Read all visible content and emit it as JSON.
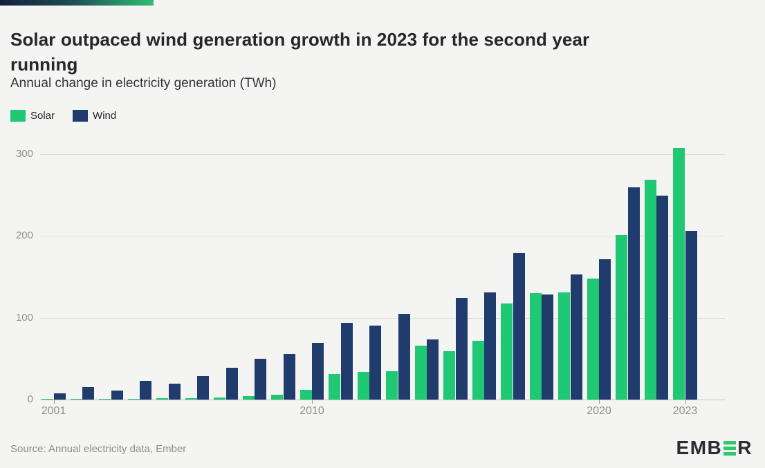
{
  "header": {
    "title_line1": "Solar outpaced wind generation growth in 2023 for the second year",
    "title_line2": "running",
    "subtitle": "Annual change in electricity generation (TWh)"
  },
  "legend": [
    {
      "label": "Solar",
      "color": "#1fc873"
    },
    {
      "label": "Wind",
      "color": "#1f3c6d"
    }
  ],
  "footer": {
    "source": "Source: Annual electricity data, Ember",
    "logo_pre": "EMB",
    "logo_post": "R",
    "logo_accent_color": "#2ec96e"
  },
  "colors": {
    "background": "#f4f4f2",
    "solar": "#1fc873",
    "wind": "#1f3c6d",
    "gridline": "#dcdcda",
    "axis_text": "#8f8f8f",
    "title_text": "#26262b"
  },
  "chart_data": {
    "type": "bar",
    "title": "Solar outpaced wind generation growth in 2023 for the second year running",
    "subtitle": "Annual change in electricity generation (TWh)",
    "xlabel": "",
    "ylabel": "Annual change in electricity generation (TWh)",
    "ylim": [
      0,
      320
    ],
    "grid": true,
    "legend_position": "top-left",
    "y_ticks": [
      0,
      100,
      200,
      300
    ],
    "x_tick_labels": [
      "2001",
      "2010",
      "2020",
      "2023"
    ],
    "categories": [
      2001,
      2002,
      2003,
      2004,
      2005,
      2006,
      2007,
      2008,
      2009,
      2010,
      2011,
      2012,
      2013,
      2014,
      2015,
      2016,
      2017,
      2018,
      2019,
      2020,
      2021,
      2022,
      2023
    ],
    "series": [
      {
        "name": "Solar",
        "color": "#1fc873",
        "values": [
          0.4,
          0.5,
          0.6,
          1,
          1.4,
          1.8,
          2.6,
          4,
          6,
          12,
          31,
          34,
          35,
          66,
          59,
          72,
          117,
          130,
          131,
          148,
          201,
          268,
          307
        ]
      },
      {
        "name": "Wind",
        "color": "#1f3c6d",
        "values": [
          8,
          15,
          11,
          23,
          19,
          29,
          39,
          50,
          56,
          69,
          94,
          90,
          105,
          73,
          124,
          131,
          179,
          128,
          153,
          171,
          259,
          249,
          206
        ]
      }
    ]
  }
}
